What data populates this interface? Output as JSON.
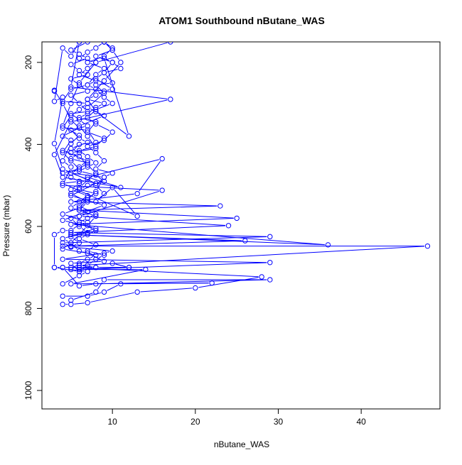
{
  "chart_data": {
    "type": "line",
    "title": "ATOM1 Southbound nButane_WAS",
    "xlabel": "nButane_WAS",
    "ylabel": "Pressure (mbar)",
    "xlim": [
      1.5,
      49.5
    ],
    "ylim": [
      1045,
      150
    ],
    "y_reversed": true,
    "x_ticks": [
      10,
      20,
      30,
      40
    ],
    "x_tick_labels": [
      "10",
      "20",
      "30",
      "40"
    ],
    "y_ticks": [
      200,
      400,
      600,
      800,
      1000
    ],
    "y_tick_labels": [
      "200",
      "400",
      "600",
      "800",
      "1000"
    ],
    "grid": false,
    "legend": "none",
    "marker": "open-circle",
    "color": "#0000ff",
    "series": [
      {
        "points": [
          [
            4,
            790
          ],
          [
            5,
            790
          ],
          [
            7,
            786
          ],
          [
            13,
            760
          ],
          [
            20,
            750
          ],
          [
            28,
            723
          ],
          [
            5,
            700
          ],
          [
            4,
            700
          ],
          [
            6,
            700
          ],
          [
            8,
            700
          ],
          [
            12,
            700
          ],
          [
            10,
            690
          ],
          [
            12,
            700
          ],
          [
            8,
            700
          ],
          [
            6,
            695
          ],
          [
            48,
            648
          ],
          [
            4,
            648
          ],
          [
            5,
            648
          ],
          [
            26,
            635
          ],
          [
            5,
            620
          ],
          [
            36,
            645
          ],
          [
            5,
            595
          ],
          [
            25,
            580
          ],
          [
            6,
            560
          ],
          [
            23,
            550
          ],
          [
            5,
            540
          ],
          [
            13,
            520
          ],
          [
            16,
            435
          ],
          [
            7,
            480
          ],
          [
            11,
            505
          ],
          [
            4,
            480
          ],
          [
            3,
            425
          ],
          [
            5,
            345
          ],
          [
            17,
            290
          ],
          [
            5,
            260
          ],
          [
            6,
            150
          ]
        ]
      },
      {
        "points": [
          [
            4,
            770
          ],
          [
            7,
            770
          ],
          [
            9,
            760
          ],
          [
            11,
            740
          ],
          [
            22,
            738
          ],
          [
            5,
            740
          ],
          [
            14,
            705
          ],
          [
            6,
            705
          ],
          [
            29,
            688
          ],
          [
            4,
            680
          ],
          [
            9,
            665
          ],
          [
            10,
            660
          ],
          [
            5,
            650
          ],
          [
            4,
            640
          ],
          [
            29,
            625
          ],
          [
            5,
            615
          ],
          [
            24,
            598
          ],
          [
            6,
            575
          ],
          [
            16,
            512
          ],
          [
            4,
            500
          ],
          [
            5,
            455
          ],
          [
            4,
            440
          ],
          [
            5,
            398
          ],
          [
            6,
            378
          ],
          [
            4,
            355
          ],
          [
            5,
            300
          ],
          [
            6,
            250
          ],
          [
            8,
            200
          ],
          [
            17,
            150
          ]
        ]
      },
      {
        "points": [
          [
            5,
            780
          ],
          [
            8,
            760
          ],
          [
            9,
            730
          ],
          [
            29,
            730
          ],
          [
            8,
            740
          ],
          [
            6,
            745
          ],
          [
            4,
            700
          ],
          [
            3,
            700
          ],
          [
            6,
            710
          ],
          [
            5,
            690
          ],
          [
            9,
            685
          ],
          [
            7,
            665
          ],
          [
            4,
            655
          ],
          [
            5,
            640
          ],
          [
            4,
            630
          ],
          [
            8,
            605
          ],
          [
            4,
            585
          ],
          [
            9,
            548
          ],
          [
            5,
            525
          ],
          [
            8,
            495
          ],
          [
            4,
            460
          ],
          [
            3,
            398
          ],
          [
            4,
            285
          ],
          [
            3,
            295
          ],
          [
            4,
            165
          ],
          [
            5,
            185
          ],
          [
            6,
            150
          ]
        ]
      },
      {
        "points": [
          [
            4,
            740
          ],
          [
            6,
            720
          ],
          [
            7,
            710
          ],
          [
            5,
            705
          ],
          [
            6,
            690
          ],
          [
            7,
            680
          ],
          [
            8,
            670
          ],
          [
            6,
            660
          ],
          [
            5,
            640
          ],
          [
            6,
            620
          ],
          [
            7,
            598
          ],
          [
            8,
            575
          ],
          [
            6,
            560
          ],
          [
            7,
            540
          ],
          [
            5,
            520
          ],
          [
            6,
            505
          ],
          [
            8,
            470
          ],
          [
            7,
            450
          ],
          [
            6,
            430
          ],
          [
            5,
            420
          ],
          [
            8,
            410
          ],
          [
            7,
            380
          ],
          [
            6,
            355
          ],
          [
            9,
            330
          ],
          [
            7,
            310
          ],
          [
            9,
            275
          ],
          [
            8,
            255
          ],
          [
            10,
            250
          ],
          [
            9,
            225
          ],
          [
            10,
            200
          ],
          [
            8,
            185
          ],
          [
            10,
            170
          ],
          [
            9,
            150
          ]
        ]
      },
      {
        "points": [
          [
            3,
            700
          ],
          [
            3,
            620
          ],
          [
            4,
            610
          ],
          [
            5,
            610
          ],
          [
            6,
            595
          ],
          [
            7,
            590
          ],
          [
            4,
            570
          ],
          [
            6,
            555
          ],
          [
            7,
            535
          ],
          [
            8,
            515
          ],
          [
            9,
            480
          ],
          [
            5,
            470
          ],
          [
            6,
            455
          ],
          [
            7,
            440
          ],
          [
            4,
            415
          ],
          [
            5,
            420
          ],
          [
            6,
            400
          ],
          [
            8,
            395
          ],
          [
            7,
            365
          ],
          [
            4,
            360
          ],
          [
            5,
            330
          ],
          [
            6,
            315
          ],
          [
            7,
            300
          ],
          [
            4,
            295
          ],
          [
            5,
            265
          ],
          [
            7,
            255
          ],
          [
            8,
            245
          ],
          [
            6,
            230
          ],
          [
            7,
            215
          ],
          [
            8,
            200
          ],
          [
            6,
            190
          ],
          [
            7,
            175
          ],
          [
            8,
            165
          ],
          [
            9,
            150
          ]
        ]
      },
      {
        "points": [
          [
            5,
            650
          ],
          [
            6,
            640
          ],
          [
            5,
            625
          ],
          [
            7,
            615
          ],
          [
            6,
            600
          ],
          [
            5,
            580
          ],
          [
            6,
            575
          ],
          [
            7,
            565
          ],
          [
            5,
            555
          ],
          [
            6,
            540
          ],
          [
            7,
            525
          ],
          [
            5,
            510
          ],
          [
            6,
            495
          ],
          [
            7,
            485
          ],
          [
            5,
            470
          ],
          [
            6,
            460
          ],
          [
            7,
            445
          ],
          [
            5,
            435
          ],
          [
            6,
            420
          ],
          [
            5,
            410
          ],
          [
            7,
            395
          ],
          [
            6,
            385
          ],
          [
            5,
            365
          ],
          [
            7,
            355
          ],
          [
            6,
            340
          ],
          [
            5,
            325
          ],
          [
            7,
            320
          ],
          [
            6,
            300
          ],
          [
            5,
            280
          ],
          [
            7,
            270
          ],
          [
            6,
            255
          ],
          [
            5,
            240
          ],
          [
            7,
            230
          ],
          [
            6,
            220
          ],
          [
            5,
            205
          ],
          [
            7,
            190
          ],
          [
            6,
            180
          ],
          [
            5,
            170
          ],
          [
            7,
            150
          ]
        ]
      },
      {
        "points": [
          [
            6,
            710
          ],
          [
            7,
            695
          ],
          [
            8,
            680
          ],
          [
            9,
            670
          ],
          [
            7,
            660
          ],
          [
            8,
            645
          ],
          [
            6,
            630
          ],
          [
            7,
            620
          ],
          [
            8,
            610
          ],
          [
            6,
            590
          ],
          [
            7,
            580
          ],
          [
            8,
            570
          ],
          [
            6,
            550
          ],
          [
            7,
            530
          ],
          [
            8,
            520
          ],
          [
            6,
            510
          ],
          [
            7,
            500
          ],
          [
            9,
            490
          ],
          [
            8,
            475
          ],
          [
            6,
            465
          ],
          [
            7,
            455
          ],
          [
            8,
            445
          ],
          [
            7,
            430
          ],
          [
            6,
            415
          ],
          [
            8,
            405
          ],
          [
            9,
            385
          ],
          [
            7,
            370
          ],
          [
            8,
            345
          ],
          [
            6,
            335
          ],
          [
            7,
            325
          ],
          [
            8,
            310
          ],
          [
            9,
            300
          ],
          [
            7,
            290
          ],
          [
            8,
            280
          ],
          [
            9,
            270
          ],
          [
            10,
            265
          ],
          [
            8,
            240
          ],
          [
            9,
            225
          ],
          [
            11,
            215
          ],
          [
            10,
            200
          ],
          [
            9,
            190
          ],
          [
            12,
            380
          ],
          [
            8,
            320
          ],
          [
            7,
            290
          ],
          [
            9,
            245
          ],
          [
            11,
            200
          ],
          [
            10,
            170
          ],
          [
            9,
            150
          ]
        ]
      },
      {
        "points": [
          [
            3,
            270
          ],
          [
            3,
            268
          ],
          [
            4,
            300
          ],
          [
            5,
            340
          ],
          [
            6,
            360
          ],
          [
            4,
            380
          ],
          [
            5,
            390
          ],
          [
            4,
            420
          ],
          [
            5,
            440
          ],
          [
            6,
            460
          ],
          [
            4,
            470
          ],
          [
            5,
            480
          ],
          [
            6,
            490
          ],
          [
            4,
            495
          ],
          [
            13,
            575
          ],
          [
            10,
            505
          ],
          [
            8,
            540
          ],
          [
            9,
            520
          ],
          [
            8,
            500
          ],
          [
            9,
            480
          ],
          [
            10,
            470
          ],
          [
            8,
            460
          ],
          [
            9,
            440
          ],
          [
            8,
            420
          ],
          [
            7,
            405
          ],
          [
            9,
            390
          ],
          [
            10,
            370
          ],
          [
            8,
            350
          ],
          [
            7,
            335
          ],
          [
            8,
            315
          ],
          [
            10,
            300
          ],
          [
            9,
            285
          ],
          [
            8,
            265
          ],
          [
            7,
            255
          ],
          [
            8,
            230
          ],
          [
            9,
            215
          ],
          [
            7,
            200
          ],
          [
            9,
            185
          ],
          [
            10,
            165
          ],
          [
            9,
            150
          ]
        ]
      }
    ]
  }
}
